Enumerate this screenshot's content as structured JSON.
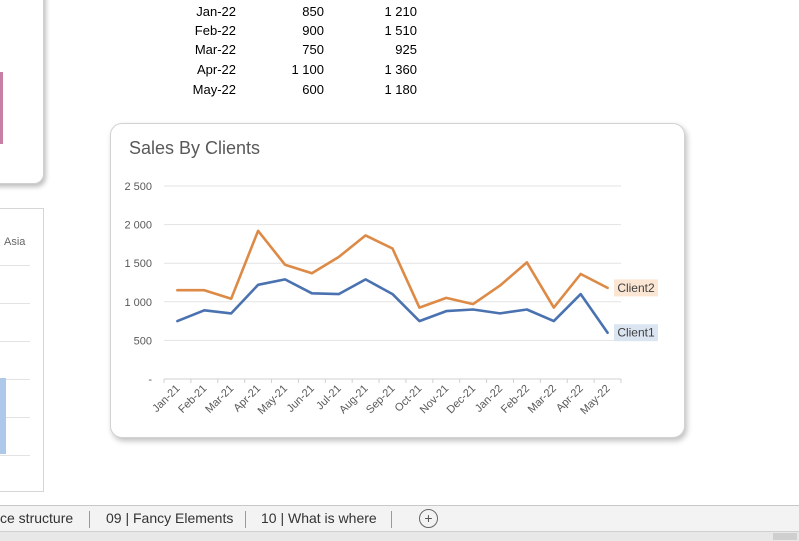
{
  "table": {
    "rows": [
      {
        "month": "Jan-22",
        "client1": "850",
        "client2": "1 210"
      },
      {
        "month": "Feb-22",
        "client1": "900",
        "client2": "1 510"
      },
      {
        "month": "Mar-22",
        "client1": "750",
        "client2": "925"
      },
      {
        "month": "Apr-22",
        "client1": "1 100",
        "client2": "1 360"
      },
      {
        "month": "May-22",
        "client1": "600",
        "client2": "1 180"
      }
    ]
  },
  "left_chart": {
    "legend_label": "Asia",
    "colors": {
      "pink": "#c77fa4",
      "blue": "#aec8ea"
    }
  },
  "chart_data": {
    "type": "line",
    "title": "Sales By Clients",
    "xlabel": "",
    "ylabel": "",
    "ylim": [
      0,
      2500
    ],
    "yticks": [
      0,
      500,
      1000,
      1500,
      2000,
      2500
    ],
    "ytick_labels": [
      "-",
      "500",
      "1 000",
      "1 500",
      "2 000",
      "2 500"
    ],
    "grid": true,
    "categories": [
      "Jan-21",
      "Feb-21",
      "Mar-21",
      "Apr-21",
      "May-21",
      "Jun-21",
      "Jul-21",
      "Aug-21",
      "Sep-21",
      "Oct-21",
      "Nov-21",
      "Dec-21",
      "Jan-22",
      "Feb-22",
      "Mar-22",
      "Apr-22",
      "May-22"
    ],
    "series": [
      {
        "name": "Client1",
        "color": "#4a72b0",
        "label_bg": "#dbe5f1",
        "values": [
          750,
          890,
          850,
          1220,
          1290,
          1110,
          1100,
          1290,
          1100,
          750,
          880,
          900,
          850,
          900,
          750,
          1100,
          600
        ]
      },
      {
        "name": "Client2",
        "color": "#dd8a46",
        "label_bg": "#fbe6d4",
        "values": [
          1150,
          1150,
          1040,
          1920,
          1480,
          1370,
          1580,
          1860,
          1690,
          925,
          1050,
          970,
          1210,
          1510,
          925,
          1360,
          1180
        ]
      }
    ]
  },
  "tabs": [
    {
      "label": "ce structure"
    },
    {
      "label": "09 | Fancy Elements"
    },
    {
      "label": "10 | What is where"
    }
  ],
  "add_tab": "+"
}
